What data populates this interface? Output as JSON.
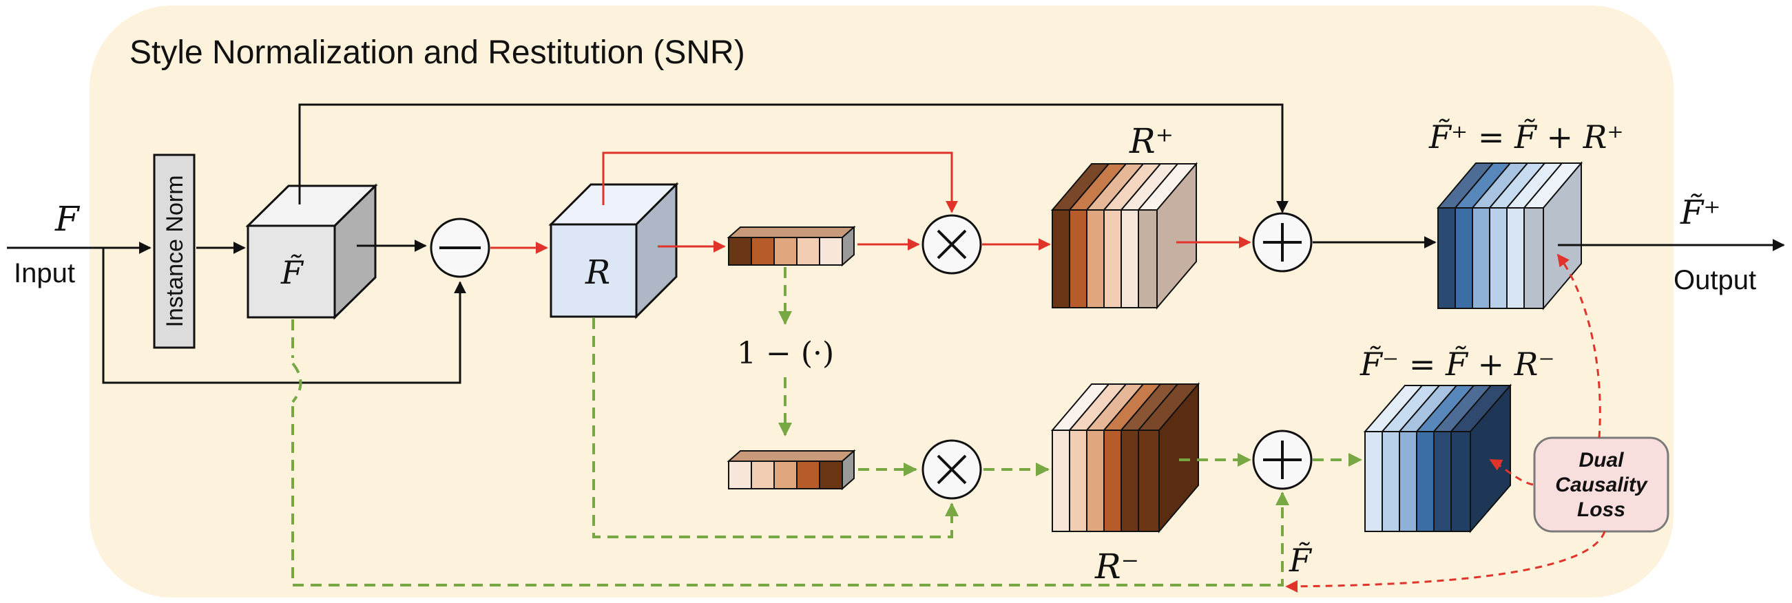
{
  "title": "Style Normalization and Restitution (SNR)",
  "labels": {
    "input_symbol": "F",
    "input_word": "Input",
    "instance_norm": "Instance Norm",
    "f_tilde": "F̃",
    "r_symbol": "R",
    "one_minus": "1 − (·)",
    "r_plus": "R⁺",
    "r_minus": "R⁻",
    "f_plus_eq": "F̃⁺ = F̃ + R⁺",
    "f_minus_eq": "F̃⁻ = F̃ + R⁻",
    "output_symbol": "F̃⁺",
    "output_word": "Output",
    "f_tilde_bottom": "F̃",
    "loss_line1": "Dual",
    "loss_line2": "Causality",
    "loss_line3": "Loss"
  },
  "colors": {
    "background_panel": "#fdf2dc",
    "positive_arrow": "#e0332a",
    "negative_arrow": "#77a843",
    "loss_box": "#f9dede",
    "brown_scale": [
      "#6b3616",
      "#b65c2a",
      "#e0a77f",
      "#f0cdb3",
      "#f8e6da"
    ],
    "blue_scale": [
      "#2b4a73",
      "#3a6ea5",
      "#8fb1d8",
      "#b9d0ea",
      "#d8e6f4"
    ]
  },
  "icons": {
    "subtract": "minus-circle-icon",
    "multiply": "times-circle-icon",
    "add": "plus-circle-icon"
  }
}
